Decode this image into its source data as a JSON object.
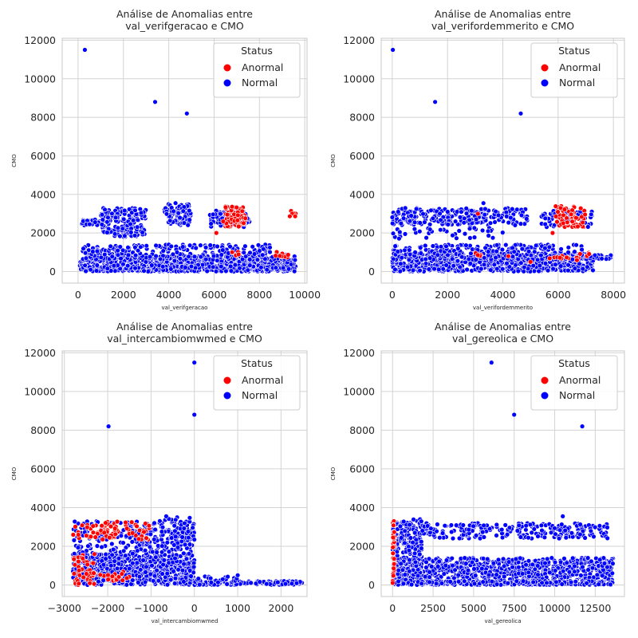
{
  "chart_data": [
    {
      "type": "scatter",
      "title": "Análise de Anomalias entre\nval_verifgeracao e CMO",
      "xlabel": "val_verifgeracao",
      "ylabel": "CMO",
      "xlim": [
        -700,
        10100
      ],
      "ylim": [
        -600,
        12100
      ],
      "xticks": [
        0,
        2000,
        4000,
        6000,
        8000,
        10000
      ],
      "yticks": [
        0,
        2000,
        4000,
        6000,
        8000,
        10000,
        12000
      ],
      "grid": true,
      "legend": {
        "title": "Status",
        "placement": "top-right",
        "entries": [
          "Anormal",
          "Normal"
        ]
      },
      "series": [
        {
          "name": "Anormal",
          "color": "#ff0000",
          "clusters": [
            {
              "x": [
                6500,
                7400
              ],
              "y": [
                2300,
                3400
              ],
              "n": 70
            },
            {
              "x": [
                8700,
                9300
              ],
              "y": [
                700,
                1050
              ],
              "n": 10
            },
            {
              "x": [
                9300,
                9600
              ],
              "y": [
                2850,
                3200
              ],
              "n": 6
            },
            {
              "x": [
                6700,
                7100
              ],
              "y": [
                800,
                1100
              ],
              "n": 4
            }
          ],
          "points": [
            [
              6100,
              2000
            ],
            [
              6400,
              2600
            ]
          ]
        },
        {
          "name": "Normal",
          "color": "#0000ff",
          "clusters": [
            {
              "x": [
                0,
                9600
              ],
              "y": [
                0,
                800
              ],
              "n": 700
            },
            {
              "x": [
                200,
                8500
              ],
              "y": [
                600,
                1400
              ],
              "n": 260
            },
            {
              "x": [
                100,
                1000
              ],
              "y": [
                2400,
                2700
              ],
              "n": 40
            },
            {
              "x": [
                1000,
                3000
              ],
              "y": [
                1800,
                3300
              ],
              "n": 170
            },
            {
              "x": [
                3800,
                5000
              ],
              "y": [
                2400,
                3500
              ],
              "n": 80
            },
            {
              "x": [
                5800,
                7600
              ],
              "y": [
                2300,
                3200
              ],
              "n": 70
            },
            {
              "x": [
                200,
                9600
              ],
              "y": [
                0,
                350
              ],
              "n": 200
            },
            {
              "x": [
                9000,
                9400
              ],
              "y": [
                100,
                900
              ],
              "n": 25
            }
          ],
          "points": [
            [
              300,
              11500
            ],
            [
              3400,
              8800
            ],
            [
              4800,
              8200
            ],
            [
              4300,
              3550
            ]
          ]
        }
      ]
    },
    {
      "type": "scatter",
      "title": "Análise de Anomalias entre\nval_verifordemmerito e CMO",
      "xlabel": "val_verifordemmerito",
      "ylabel": "CMO",
      "xlim": [
        -400,
        8400
      ],
      "ylim": [
        -600,
        12100
      ],
      "xticks": [
        0,
        2000,
        4000,
        6000,
        8000
      ],
      "yticks": [
        0,
        2000,
        4000,
        6000,
        8000,
        10000,
        12000
      ],
      "grid": true,
      "legend": {
        "title": "Status",
        "placement": "top-right",
        "entries": [
          "Anormal",
          "Normal"
        ]
      },
      "series": [
        {
          "name": "Anormal",
          "color": "#ff0000",
          "clusters": [
            {
              "x": [
                5900,
                7000
              ],
              "y": [
                2300,
                3400
              ],
              "n": 60
            },
            {
              "x": [
                5500,
                6800
              ],
              "y": [
                500,
                1000
              ],
              "n": 12
            },
            {
              "x": [
                6900,
                7200
              ],
              "y": [
                700,
                1000
              ],
              "n": 4
            },
            {
              "x": [
                3000,
                3200
              ],
              "y": [
                800,
                1100
              ],
              "n": 4
            }
          ],
          "points": [
            [
              5800,
              2000
            ],
            [
              3100,
              3000
            ],
            [
              4200,
              800
            ],
            [
              5000,
              500
            ]
          ]
        },
        {
          "name": "Normal",
          "color": "#0000ff",
          "clusters": [
            {
              "x": [
                0,
                7300
              ],
              "y": [
                0,
                900
              ],
              "n": 700
            },
            {
              "x": [
                0,
                6900
              ],
              "y": [
                600,
                1400
              ],
              "n": 250
            },
            {
              "x": [
                0,
                4900
              ],
              "y": [
                2400,
                3300
              ],
              "n": 240
            },
            {
              "x": [
                5400,
                7300
              ],
              "y": [
                2300,
                3200
              ],
              "n": 70
            },
            {
              "x": [
                0,
                4000
              ],
              "y": [
                1700,
                2300
              ],
              "n": 40
            },
            {
              "x": [
                7000,
                8000
              ],
              "y": [
                650,
                850
              ],
              "n": 25
            }
          ],
          "points": [
            [
              20,
              11500
            ],
            [
              1550,
              8800
            ],
            [
              4650,
              8200
            ],
            [
              3300,
              3550
            ]
          ]
        }
      ]
    },
    {
      "type": "scatter",
      "title": "Análise de Anomalias entre\nval_intercambiomwmed e CMO",
      "xlabel": "val_intercambiomwmed",
      "ylabel": "CMO",
      "xlim": [
        -3050,
        2600
      ],
      "ylim": [
        -600,
        12100
      ],
      "xticks": [
        -3000,
        -2000,
        -1000,
        0,
        1000,
        2000
      ],
      "yticks": [
        0,
        2000,
        4000,
        6000,
        8000,
        10000,
        12000
      ],
      "grid": true,
      "legend": {
        "title": "Status",
        "placement": "top-right",
        "entries": [
          "Anormal",
          "Normal"
        ]
      },
      "series": [
        {
          "name": "Anormal",
          "color": "#ff0000",
          "clusters": [
            {
              "x": [
                -2800,
                -1000
              ],
              "y": [
                2300,
                3300
              ],
              "n": 80
            },
            {
              "x": [
                -2800,
                -2300
              ],
              "y": [
                0,
                1600
              ],
              "n": 45
            },
            {
              "x": [
                -1900,
                -1700
              ],
              "y": [
                100,
                600
              ],
              "n": 6
            },
            {
              "x": [
                -2500,
                -1500
              ],
              "y": [
                200,
                800
              ],
              "n": 12
            }
          ],
          "points": []
        },
        {
          "name": "Normal",
          "color": "#0000ff",
          "clusters": [
            {
              "x": [
                -2800,
                0
              ],
              "y": [
                0,
                1600
              ],
              "n": 700
            },
            {
              "x": [
                -2800,
                0
              ],
              "y": [
                1600,
                3300
              ],
              "n": 250
            },
            {
              "x": [
                -800,
                0
              ],
              "y": [
                2000,
                3500
              ],
              "n": 60
            },
            {
              "x": [
                0,
                2500
              ],
              "y": [
                0,
                200
              ],
              "n": 150
            },
            {
              "x": [
                0,
                1000
              ],
              "y": [
                0,
                450
              ],
              "n": 40
            }
          ],
          "points": [
            [
              -1980,
              8200
            ],
            [
              0,
              8800
            ],
            [
              0,
              11500
            ],
            [
              -650,
              3550
            ],
            [
              1000,
              500
            ]
          ]
        }
      ]
    },
    {
      "type": "scatter",
      "title": "Análise de Anomalias entre\nval_gereolica e CMO",
      "xlabel": "val_gereolica",
      "ylabel": "CMO",
      "xlim": [
        -700,
        14300
      ],
      "ylim": [
        -600,
        12100
      ],
      "xticks": [
        0,
        2500,
        5000,
        7500,
        10000,
        12500
      ],
      "yticks": [
        0,
        2000,
        4000,
        6000,
        8000,
        10000,
        12000
      ],
      "grid": true,
      "legend": {
        "title": "Status",
        "placement": "top-right",
        "entries": [
          "Anormal",
          "Normal"
        ]
      },
      "series": [
        {
          "name": "Anormal",
          "color": "#ff0000",
          "clusters": [
            {
              "x": [
                0,
                120
              ],
              "y": [
                0,
                3400
              ],
              "n": 35
            }
          ],
          "points": []
        },
        {
          "name": "Normal",
          "color": "#0000ff",
          "clusters": [
            {
              "x": [
                0,
                13600
              ],
              "y": [
                0,
                1400
              ],
              "n": 900
            },
            {
              "x": [
                0,
                1800
              ],
              "y": [
                0,
                3400
              ],
              "n": 250
            },
            {
              "x": [
                1800,
                13300
              ],
              "y": [
                2400,
                3200
              ],
              "n": 230
            },
            {
              "x": [
                0,
                13600
              ],
              "y": [
                0,
                200
              ],
              "n": 150
            }
          ],
          "points": [
            [
              6100,
              11500
            ],
            [
              7500,
              8800
            ],
            [
              11700,
              8200
            ],
            [
              10500,
              3550
            ]
          ]
        }
      ]
    }
  ]
}
